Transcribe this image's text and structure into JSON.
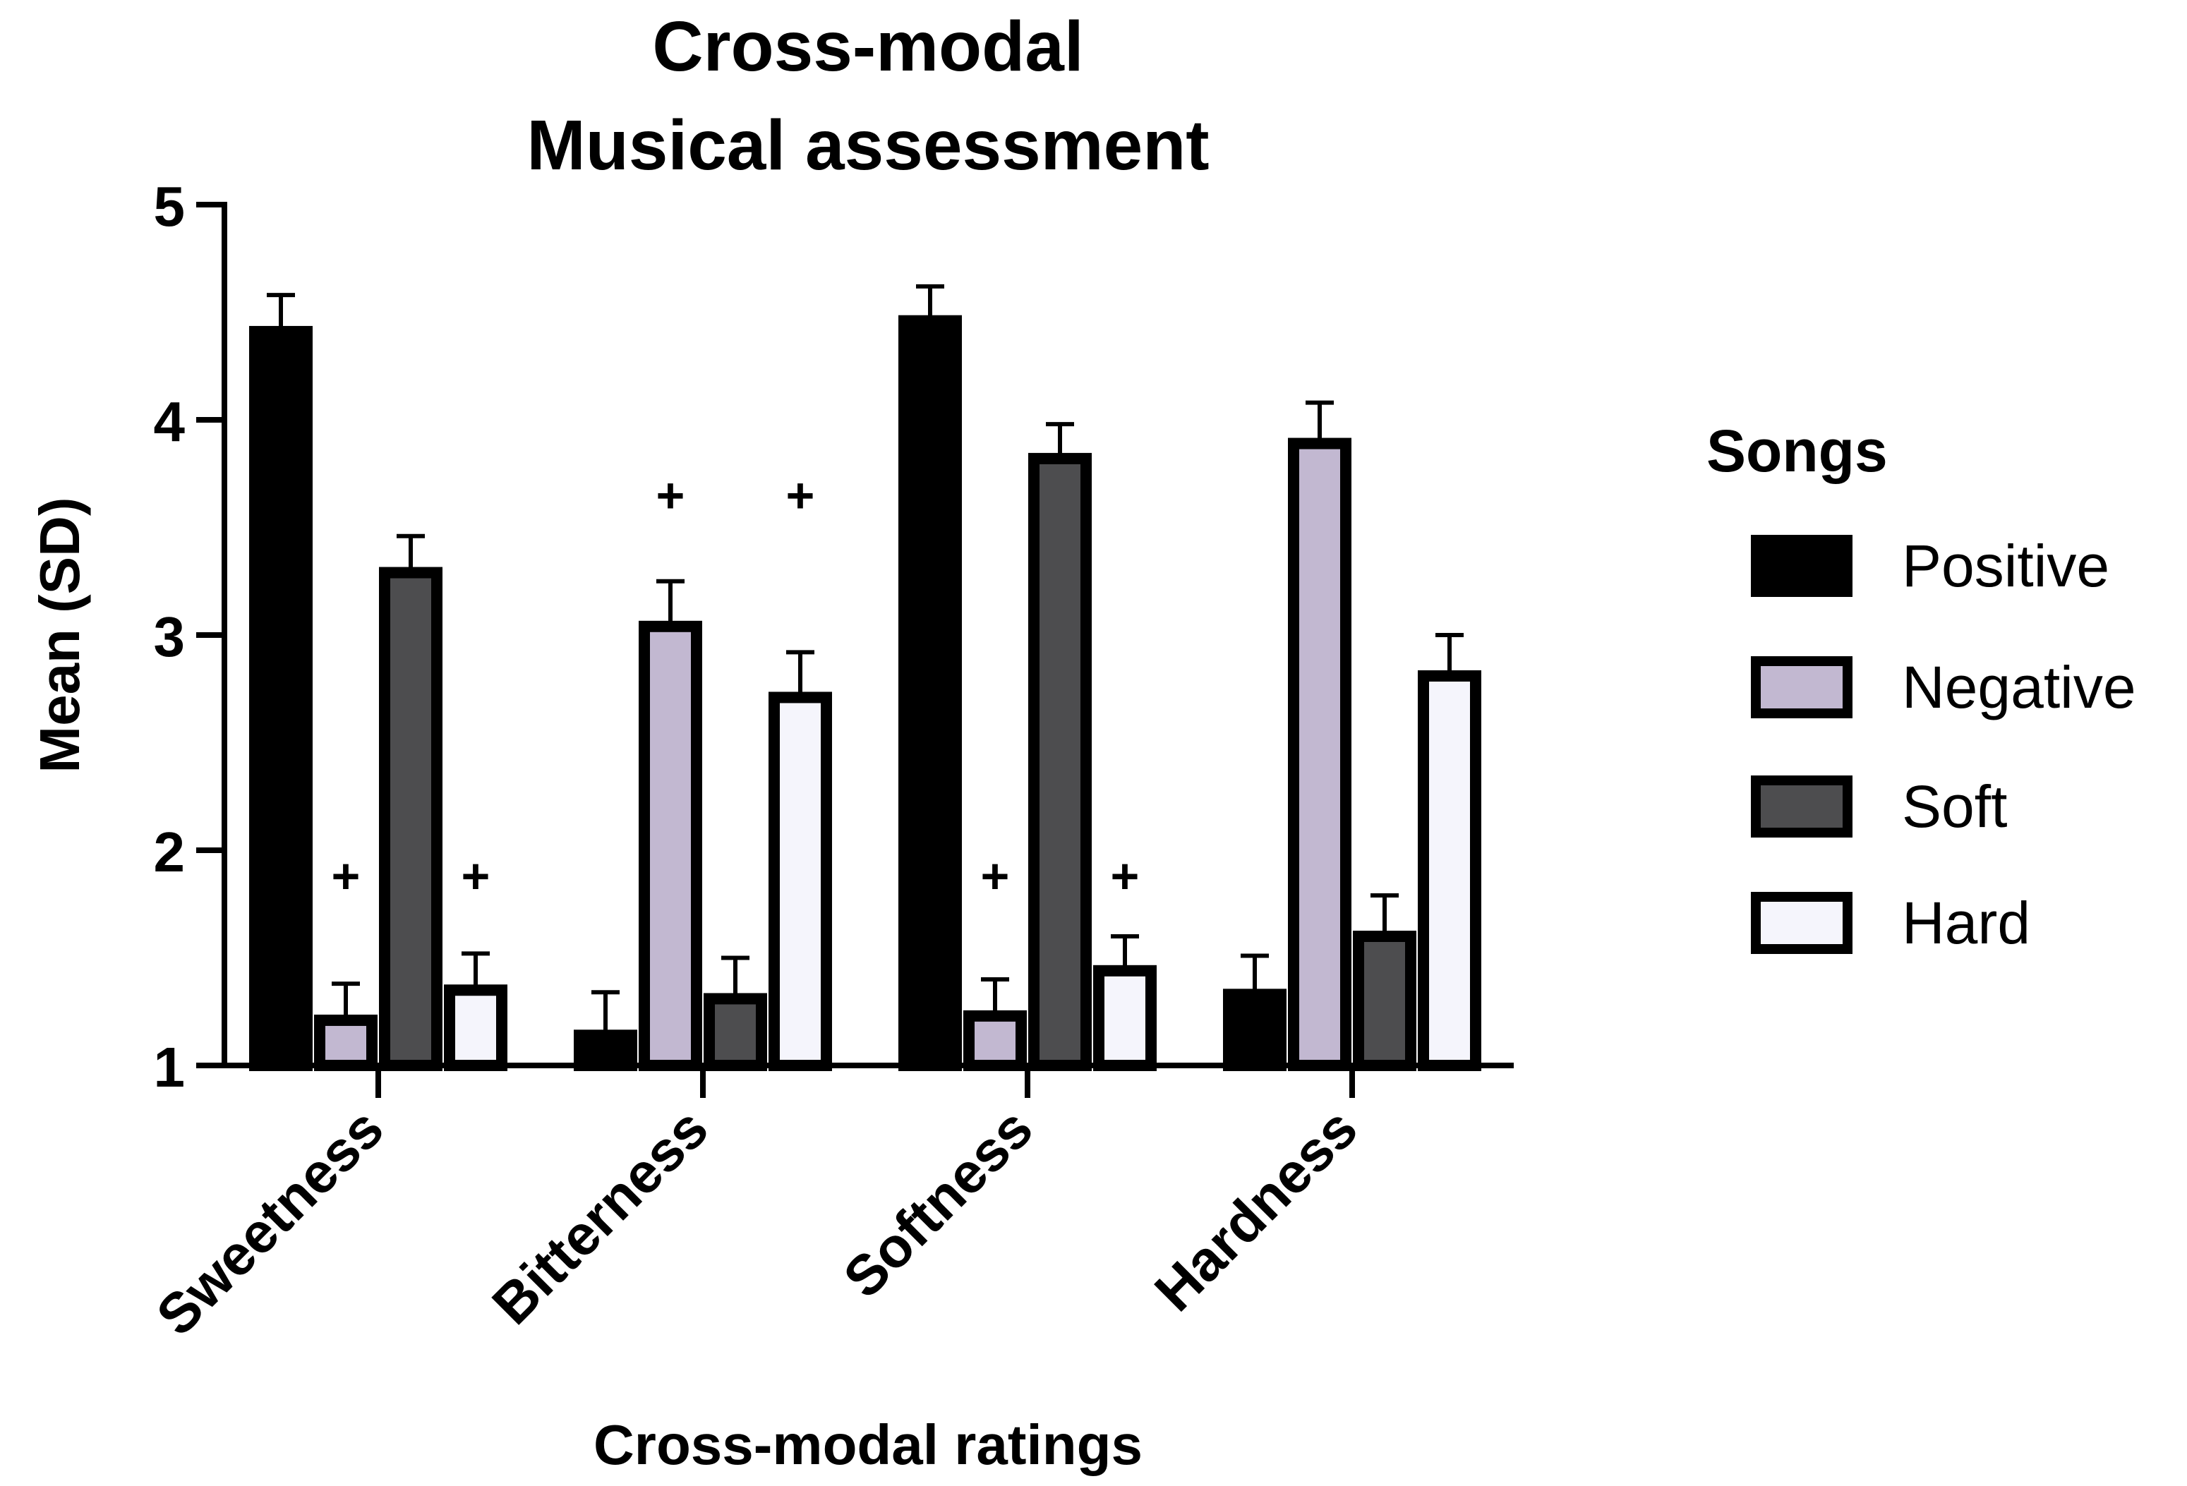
{
  "chart_data": {
    "type": "bar",
    "title_lines": [
      "Cross-modal",
      "Musical assessment"
    ],
    "xlabel": "Cross-modal ratings",
    "ylabel": "Mean (SD)",
    "ylim": [
      1,
      5
    ],
    "yticks": [
      1,
      2,
      3,
      4,
      5
    ],
    "categories": [
      "Sweetness",
      "Bitterness",
      "Softness",
      "Hardness"
    ],
    "legend_title": "Songs",
    "legend_position": "right",
    "series": [
      {
        "name": "Positive",
        "color": "#000000",
        "values": [
          4.41,
          1.14,
          4.46,
          1.33
        ],
        "errors": [
          0.17,
          0.2,
          0.16,
          0.18
        ]
      },
      {
        "name": "Negative",
        "color": "#c2b8d1",
        "values": [
          1.21,
          3.04,
          1.23,
          3.89
        ],
        "errors": [
          0.17,
          0.21,
          0.17,
          0.19
        ]
      },
      {
        "name": "Soft",
        "color": "#4d4d4f",
        "values": [
          3.29,
          1.31,
          3.82,
          1.6
        ],
        "errors": [
          0.17,
          0.19,
          0.16,
          0.19
        ]
      },
      {
        "name": "Hard",
        "color": "#f5f5fc",
        "values": [
          1.35,
          2.71,
          1.44,
          2.81
        ],
        "errors": [
          0.17,
          0.21,
          0.16,
          0.19
        ]
      }
    ],
    "annotations": [
      {
        "text": "+",
        "category": "Sweetness",
        "series": "Negative",
        "y": 1.88
      },
      {
        "text": "+",
        "category": "Sweetness",
        "series": "Hard",
        "y": 1.88
      },
      {
        "text": "+",
        "category": "Bitterness",
        "series": "Negative",
        "y": 3.65
      },
      {
        "text": "+",
        "category": "Bitterness",
        "series": "Hard",
        "y": 3.65
      },
      {
        "text": "+",
        "category": "Softness",
        "series": "Negative",
        "y": 1.88
      },
      {
        "text": "+",
        "category": "Softness",
        "series": "Hard",
        "y": 1.88
      }
    ]
  }
}
